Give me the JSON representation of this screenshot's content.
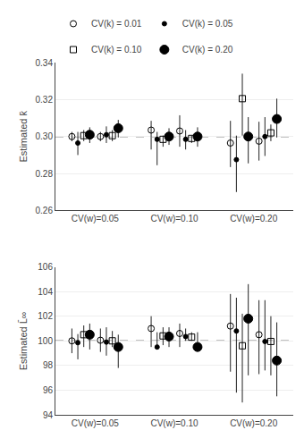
{
  "chart_data": [
    {
      "type": "scatter",
      "categories": [
        "CV(w)=0.05",
        "CV(w)=0.10",
        "CV(w)=0.20"
      ],
      "ylabel": "Estimated k̄",
      "ylim": [
        0.26,
        0.34
      ],
      "yticks": [
        0.26,
        0.28,
        {
          "value": 0.3,
          "label": "0.30"
        },
        0.32,
        0.34
      ],
      "grid": true,
      "legend": "top",
      "true_value": 0.3,
      "series": [
        {
          "name": "CV(k) = 0.01",
          "marker": "circle-open",
          "color": "#000000",
          "values": [
            0.3,
            0.3035,
            0.2965
          ],
          "lo": [
            0.2975,
            0.293,
            0.2835
          ],
          "hi": [
            0.3025,
            0.3085,
            0.3085
          ]
        },
        {
          "name": "CV(k) = 0.05",
          "marker": "dot",
          "color": "#000000",
          "values": [
            0.2965,
            0.2985,
            0.2875
          ],
          "lo": [
            0.29,
            0.2845,
            0.27
          ],
          "hi": [
            0.3025,
            0.3025,
            0.3005
          ]
        },
        {
          "name": "CV(k) = 0.10",
          "marker": "square-open",
          "color": "#000000",
          "values": [
            0.3005,
            0.2985,
            0.3205
          ],
          "lo": [
            0.2975,
            0.2945,
            0.3005
          ],
          "hi": [
            0.3035,
            0.3005,
            0.334
          ]
        },
        {
          "name": "CV(k) = 0.20",
          "marker": "circle",
          "color": "#000000",
          "values": [
            0.301,
            0.3,
            0.3
          ],
          "lo": [
            0.2965,
            0.2955,
            0.2855
          ],
          "hi": [
            0.305,
            0.3045,
            0.3105
          ]
        },
        {
          "name": "CV(k) = 0.01",
          "marker": "circle-open",
          "color": "#000000",
          "values": [
            0.3,
            0.303,
            0.2975
          ],
          "lo": [
            0.2975,
            0.2945,
            0.287
          ],
          "hi": [
            0.3025,
            0.3115,
            0.308
          ]
        },
        {
          "name": "CV(k) = 0.05",
          "marker": "dot",
          "color": "#000000",
          "values": [
            0.301,
            0.2985,
            0.3
          ],
          "lo": [
            0.2965,
            0.293,
            0.2895
          ],
          "hi": [
            0.3055,
            0.3035,
            0.3105
          ]
        },
        {
          "name": "CV(k) = 0.10",
          "marker": "square-open",
          "color": "#000000",
          "values": [
            0.3005,
            0.299,
            0.302
          ],
          "lo": [
            0.2975,
            0.2965,
            0.2975
          ],
          "hi": [
            0.3035,
            0.3005,
            0.3065
          ]
        },
        {
          "name": "CV(k) = 0.20",
          "marker": "circle",
          "color": "#000000",
          "values": [
            0.3045,
            0.3,
            0.3095
          ],
          "lo": [
            0.2995,
            0.2945,
            0.2995
          ],
          "hi": [
            0.309,
            0.305,
            0.3205
          ]
        }
      ]
    },
    {
      "type": "scatter",
      "categories": [
        "CV(w)=0.05",
        "CV(w)=0.10",
        "CV(w)=0.20"
      ],
      "ylabel": "Estimated L̄∞",
      "ylim": [
        94,
        106
      ],
      "yticks": [
        94,
        96,
        98,
        100,
        102,
        104,
        106
      ],
      "grid": true,
      "true_value": 100.0,
      "series": [
        {
          "name": "CV(k) = 0.01",
          "marker": "circle-open",
          "color": "#000000",
          "values": [
            100.0,
            101.0,
            101.2
          ],
          "lo": [
            99.0,
            99.5,
            97.5
          ],
          "hi": [
            101.0,
            102.0,
            103.8
          ]
        },
        {
          "name": "CV(k) = 0.05",
          "marker": "dot",
          "color": "#000000",
          "values": [
            99.85,
            99.5,
            100.8
          ],
          "lo": [
            98.5,
            99.5,
            95.8
          ],
          "hi": [
            100.55,
            100.7,
            103.5
          ]
        },
        {
          "name": "CV(k) = 0.10",
          "marker": "square-open",
          "color": "#000000",
          "values": [
            100.5,
            100.4,
            99.6
          ],
          "lo": [
            99.5,
            99.65,
            95.0
          ],
          "hi": [
            101.25,
            101.1,
            102.2
          ]
        },
        {
          "name": "CV(k) = 0.20",
          "marker": "circle",
          "color": "#000000",
          "values": [
            100.5,
            100.35,
            101.8
          ],
          "lo": [
            99.3,
            99.5,
            97.2
          ],
          "hi": [
            101.4,
            101.1,
            104.6
          ]
        },
        {
          "name": "CV(k) = 0.01",
          "marker": "circle-open",
          "color": "#000000",
          "values": [
            100.05,
            100.6,
            100.5
          ],
          "lo": [
            99.1,
            99.5,
            97.3
          ],
          "hi": [
            101.0,
            101.4,
            103.3
          ]
        },
        {
          "name": "CV(k) = 0.05",
          "marker": "dot",
          "color": "#000000",
          "values": [
            99.9,
            100.35,
            99.95
          ],
          "lo": [
            98.8,
            100.0,
            97.6
          ],
          "hi": [
            101.1,
            101.0,
            103.3
          ]
        },
        {
          "name": "CV(k) = 0.10",
          "marker": "square-open",
          "color": "#000000",
          "values": [
            100.0,
            100.3,
            99.95
          ],
          "lo": [
            99.5,
            100.0,
            97.2
          ],
          "hi": [
            100.8,
            100.7,
            102.0
          ]
        },
        {
          "name": "CV(k) = 0.20",
          "marker": "circle",
          "color": "#000000",
          "values": [
            99.5,
            99.5,
            98.4
          ],
          "lo": [
            97.8,
            99.5,
            95.5
          ],
          "hi": [
            100.5,
            100.7,
            101.5
          ]
        }
      ]
    }
  ]
}
